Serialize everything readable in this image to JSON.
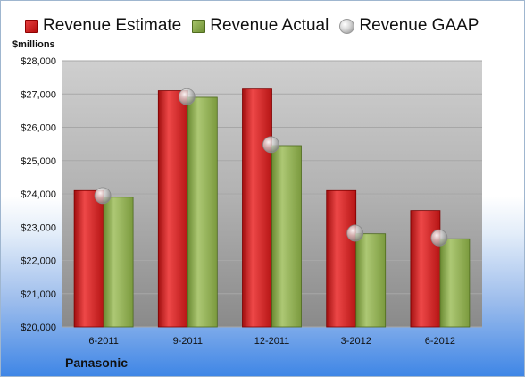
{
  "chart_data": {
    "type": "bar",
    "categories": [
      "6-2011",
      "9-2011",
      "12-2011",
      "3-2012",
      "6-2012"
    ],
    "series": [
      {
        "name": "Revenue Estimate",
        "color": "#d11a1a",
        "values": [
          24100,
          27100,
          27150,
          24100,
          23500
        ]
      },
      {
        "name": "Revenue Actual",
        "color": "#8fae4f",
        "values": [
          23900,
          26900,
          25450,
          22800,
          22650
        ]
      },
      {
        "name": "Revenue GAAP",
        "color": "#c8c8c8",
        "values": [
          23950,
          26920,
          25480,
          22820,
          22680
        ]
      }
    ],
    "ylabel": "$millions",
    "ylim": [
      20000,
      28000
    ],
    "yticks": [
      "$20,000",
      "$21,000",
      "$22,000",
      "$23,000",
      "$24,000",
      "$25,000",
      "$26,000",
      "$27,000",
      "$28,000"
    ],
    "grid": true,
    "legend": "top"
  },
  "company": "Panasonic"
}
